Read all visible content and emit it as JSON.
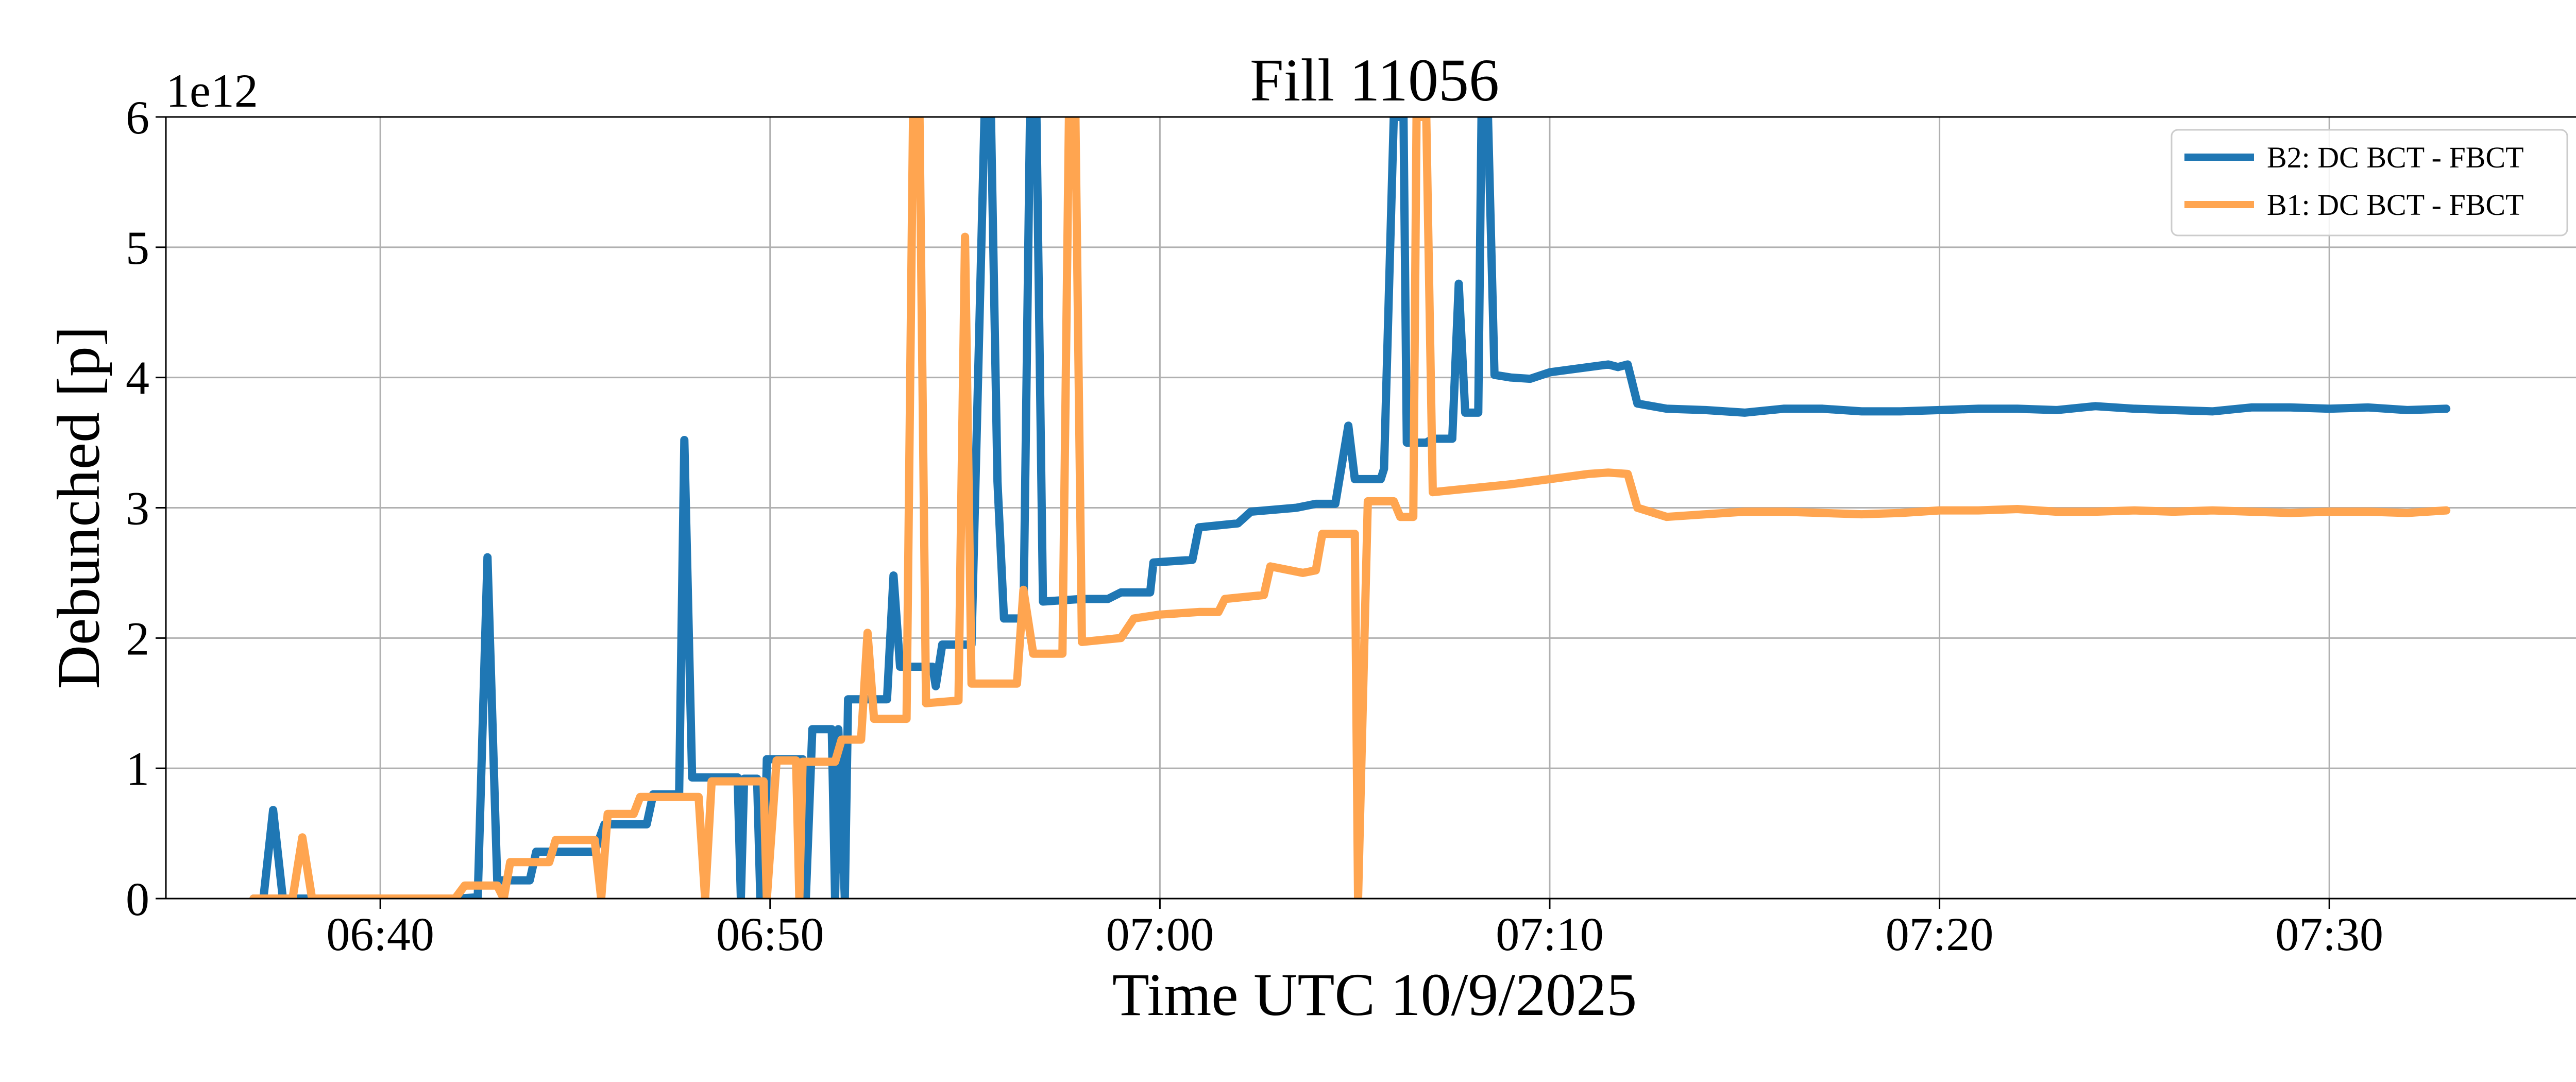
{
  "chart_data": {
    "type": "line",
    "title": "Fill 11056",
    "xlabel": "Time UTC 10/9/2025",
    "ylabel": "Debunched [p]",
    "y_offset_label": "1e12",
    "xlim": [
      "06:34:30",
      "07:36:30"
    ],
    "ylim": [
      0,
      6
    ],
    "y_unit_multiplier": 1000000000000.0,
    "x_ticks": [
      "06:40",
      "06:50",
      "07:00",
      "07:10",
      "07:20",
      "07:30"
    ],
    "y_ticks": [
      0,
      1,
      2,
      3,
      4,
      5,
      6
    ],
    "grid": true,
    "legend_position": "top-right",
    "series": [
      {
        "name": "B2: DC BCT - FBCT",
        "color": "#1f77b4",
        "points": [
          [
            "06:36:45",
            0
          ],
          [
            "06:37:00",
            0
          ],
          [
            "06:37:15",
            0.68
          ],
          [
            "06:37:30",
            0
          ],
          [
            "06:38:00",
            0
          ],
          [
            "06:40:00",
            0
          ],
          [
            "06:42:00",
            0
          ],
          [
            "06:42:30",
            0.01
          ],
          [
            "06:42:45",
            2.62
          ],
          [
            "06:43:00",
            0.14
          ],
          [
            "06:43:50",
            0.14
          ],
          [
            "06:44:00",
            0.36
          ],
          [
            "06:45:30",
            0.36
          ],
          [
            "06:45:45",
            0.57
          ],
          [
            "06:46:50",
            0.57
          ],
          [
            "06:47:00",
            0.8
          ],
          [
            "06:47:40",
            0.8
          ],
          [
            "06:47:48",
            3.52
          ],
          [
            "06:48:00",
            0.93
          ],
          [
            "06:49:10",
            0.93
          ],
          [
            "06:49:15",
            0
          ],
          [
            "06:49:20",
            0.92
          ],
          [
            "06:49:40",
            0.92
          ],
          [
            "06:49:45",
            0
          ],
          [
            "06:49:50",
            0
          ],
          [
            "06:49:55",
            1.07
          ],
          [
            "06:50:50",
            1.07
          ],
          [
            "06:50:55",
            0
          ],
          [
            "06:51:05",
            1.3
          ],
          [
            "06:51:35",
            1.3
          ],
          [
            "06:51:40",
            0
          ],
          [
            "06:51:45",
            1.3
          ],
          [
            "06:51:55",
            0
          ],
          [
            "06:52:00",
            1.53
          ],
          [
            "06:53:00",
            1.53
          ],
          [
            "06:53:10",
            2.48
          ],
          [
            "06:53:20",
            1.78
          ],
          [
            "06:54:10",
            1.78
          ],
          [
            "06:54:15",
            1.63
          ],
          [
            "06:54:25",
            1.95
          ],
          [
            "06:55:10",
            1.95
          ],
          [
            "06:55:30",
            6.0
          ],
          [
            "06:55:40",
            6.0
          ],
          [
            "06:55:50",
            3.2
          ],
          [
            "06:56:00",
            2.15
          ],
          [
            "06:56:30",
            2.15
          ],
          [
            "06:56:40",
            6.0
          ],
          [
            "06:56:50",
            6.0
          ],
          [
            "06:57:00",
            2.28
          ],
          [
            "06:58:00",
            2.3
          ],
          [
            "06:58:40",
            2.3
          ],
          [
            "06:59:00",
            2.35
          ],
          [
            "06:59:45",
            2.35
          ],
          [
            "06:59:50",
            2.58
          ],
          [
            "07:00:50",
            2.6
          ],
          [
            "07:01:00",
            2.85
          ],
          [
            "07:02:00",
            2.88
          ],
          [
            "07:02:20",
            2.97
          ],
          [
            "07:03:30",
            3.0
          ],
          [
            "07:04:00",
            3.03
          ],
          [
            "07:04:30",
            3.03
          ],
          [
            "07:04:50",
            3.63
          ],
          [
            "07:05:00",
            3.22
          ],
          [
            "07:05:40",
            3.22
          ],
          [
            "07:05:45",
            3.3
          ],
          [
            "07:06:00",
            6.0
          ],
          [
            "07:06:15",
            6.0
          ],
          [
            "07:06:20",
            3.5
          ],
          [
            "07:06:50",
            3.5
          ],
          [
            "07:07:00",
            3.53
          ],
          [
            "07:07:30",
            3.53
          ],
          [
            "07:07:40",
            4.72
          ],
          [
            "07:07:50",
            3.73
          ],
          [
            "07:08:10",
            3.73
          ],
          [
            "07:08:15",
            6.0
          ],
          [
            "07:08:25",
            6.0
          ],
          [
            "07:08:35",
            4.02
          ],
          [
            "07:09:00",
            4.0
          ],
          [
            "07:09:30",
            3.99
          ],
          [
            "07:10:00",
            4.04
          ],
          [
            "07:11:00",
            4.08
          ],
          [
            "07:11:30",
            4.1
          ],
          [
            "07:11:45",
            4.08
          ],
          [
            "07:12:00",
            4.1
          ],
          [
            "07:12:15",
            3.8
          ],
          [
            "07:13:00",
            3.76
          ],
          [
            "07:14:00",
            3.75
          ],
          [
            "07:15:00",
            3.73
          ],
          [
            "07:16:00",
            3.76
          ],
          [
            "07:17:00",
            3.76
          ],
          [
            "07:18:00",
            3.74
          ],
          [
            "07:19:00",
            3.74
          ],
          [
            "07:20:00",
            3.75
          ],
          [
            "07:21:00",
            3.76
          ],
          [
            "07:22:00",
            3.76
          ],
          [
            "07:23:00",
            3.75
          ],
          [
            "07:24:00",
            3.78
          ],
          [
            "07:25:00",
            3.76
          ],
          [
            "07:26:00",
            3.75
          ],
          [
            "07:27:00",
            3.74
          ],
          [
            "07:28:00",
            3.77
          ],
          [
            "07:29:00",
            3.77
          ],
          [
            "07:30:00",
            3.76
          ],
          [
            "07:31:00",
            3.77
          ],
          [
            "07:32:00",
            3.75
          ],
          [
            "07:33:00",
            3.76
          ]
        ]
      },
      {
        "name": "B1: DC BCT - FBCT",
        "color": "#ffa550",
        "points": [
          [
            "06:36:45",
            0
          ],
          [
            "06:37:30",
            0
          ],
          [
            "06:37:45",
            0
          ],
          [
            "06:38:00",
            0.47
          ],
          [
            "06:38:15",
            0
          ],
          [
            "06:40:00",
            0
          ],
          [
            "06:41:55",
            0
          ],
          [
            "06:42:10",
            0.1
          ],
          [
            "06:43:00",
            0.1
          ],
          [
            "06:43:10",
            0
          ],
          [
            "06:43:20",
            0.28
          ],
          [
            "06:44:20",
            0.28
          ],
          [
            "06:44:30",
            0.45
          ],
          [
            "06:45:30",
            0.45
          ],
          [
            "06:45:40",
            0
          ],
          [
            "06:45:50",
            0.65
          ],
          [
            "06:46:30",
            0.65
          ],
          [
            "06:46:40",
            0.78
          ],
          [
            "06:47:40",
            0.78
          ],
          [
            "06:48:10",
            0.78
          ],
          [
            "06:48:20",
            0
          ],
          [
            "06:48:30",
            0.9
          ],
          [
            "06:49:50",
            0.9
          ],
          [
            "06:49:55",
            0
          ],
          [
            "06:50:10",
            1.06
          ],
          [
            "06:50:40",
            1.06
          ],
          [
            "06:50:45",
            0
          ],
          [
            "06:50:50",
            1.05
          ],
          [
            "06:51:40",
            1.05
          ],
          [
            "06:51:50",
            1.22
          ],
          [
            "06:52:20",
            1.22
          ],
          [
            "06:52:30",
            2.04
          ],
          [
            "06:52:40",
            1.38
          ],
          [
            "06:53:30",
            1.38
          ],
          [
            "06:53:40",
            6.0
          ],
          [
            "06:53:50",
            6.0
          ],
          [
            "06:54:00",
            1.5
          ],
          [
            "06:54:50",
            1.52
          ],
          [
            "06:55:00",
            5.08
          ],
          [
            "06:55:10",
            1.65
          ],
          [
            "06:56:00",
            1.65
          ],
          [
            "06:56:20",
            1.65
          ],
          [
            "06:56:30",
            2.37
          ],
          [
            "06:56:45",
            1.88
          ],
          [
            "06:57:30",
            1.88
          ],
          [
            "06:57:40",
            6.0
          ],
          [
            "06:57:50",
            6.0
          ],
          [
            "06:58:00",
            1.97
          ],
          [
            "06:59:00",
            2.0
          ],
          [
            "06:59:20",
            2.15
          ],
          [
            "07:00:00",
            2.18
          ],
          [
            "07:01:00",
            2.2
          ],
          [
            "07:01:30",
            2.2
          ],
          [
            "07:01:40",
            2.3
          ],
          [
            "07:02:40",
            2.33
          ],
          [
            "07:02:50",
            2.55
          ],
          [
            "07:03:40",
            2.5
          ],
          [
            "07:04:00",
            2.52
          ],
          [
            "07:04:10",
            2.8
          ],
          [
            "07:05:00",
            2.8
          ],
          [
            "07:05:05",
            0
          ],
          [
            "07:05:20",
            3.05
          ],
          [
            "07:06:00",
            3.05
          ],
          [
            "07:06:10",
            2.93
          ],
          [
            "07:06:30",
            2.93
          ],
          [
            "07:06:35",
            6.0
          ],
          [
            "07:06:50",
            6.0
          ],
          [
            "07:07:00",
            3.12
          ],
          [
            "07:08:00",
            3.15
          ],
          [
            "07:09:00",
            3.18
          ],
          [
            "07:10:00",
            3.22
          ],
          [
            "07:11:00",
            3.26
          ],
          [
            "07:11:30",
            3.27
          ],
          [
            "07:12:00",
            3.26
          ],
          [
            "07:12:15",
            3.0
          ],
          [
            "07:13:00",
            2.93
          ],
          [
            "07:14:00",
            2.95
          ],
          [
            "07:15:00",
            2.97
          ],
          [
            "07:16:00",
            2.97
          ],
          [
            "07:17:00",
            2.96
          ],
          [
            "07:18:00",
            2.95
          ],
          [
            "07:19:00",
            2.96
          ],
          [
            "07:20:00",
            2.98
          ],
          [
            "07:21:00",
            2.98
          ],
          [
            "07:22:00",
            2.99
          ],
          [
            "07:23:00",
            2.97
          ],
          [
            "07:24:00",
            2.97
          ],
          [
            "07:25:00",
            2.98
          ],
          [
            "07:26:00",
            2.97
          ],
          [
            "07:27:00",
            2.98
          ],
          [
            "07:28:00",
            2.97
          ],
          [
            "07:29:00",
            2.96
          ],
          [
            "07:30:00",
            2.97
          ],
          [
            "07:31:00",
            2.97
          ],
          [
            "07:32:00",
            2.96
          ],
          [
            "07:33:00",
            2.98
          ]
        ]
      }
    ]
  }
}
